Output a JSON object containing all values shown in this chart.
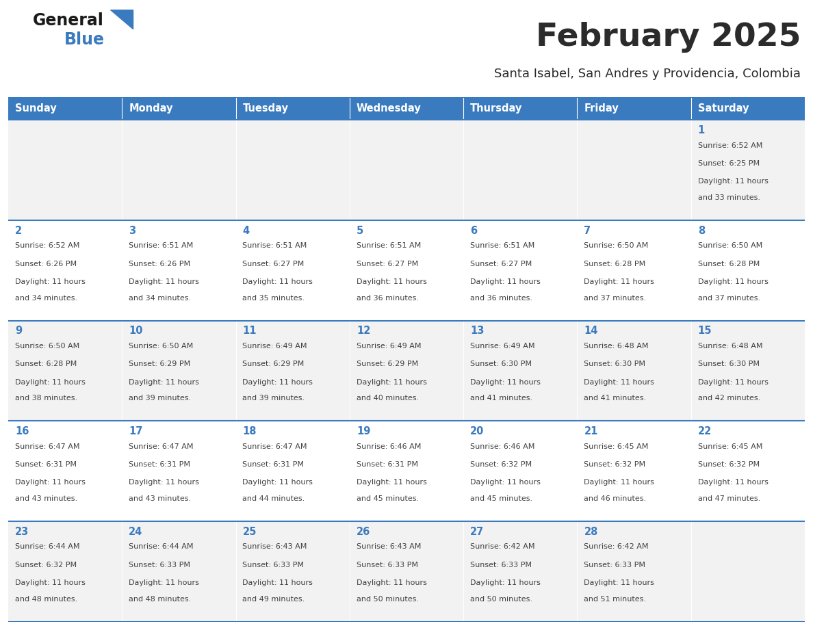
{
  "title": "February 2025",
  "subtitle": "Santa Isabel, San Andres y Providencia, Colombia",
  "days_of_week": [
    "Sunday",
    "Monday",
    "Tuesday",
    "Wednesday",
    "Thursday",
    "Friday",
    "Saturday"
  ],
  "header_bg": "#3a7abf",
  "header_text": "#ffffff",
  "row_bg_odd": "#f2f2f2",
  "row_bg_even": "#ffffff",
  "separator_color": "#3a7abf",
  "day_number_color": "#3a7abf",
  "text_color": "#404040",
  "title_color": "#2b2b2b",
  "subtitle_color": "#2b2b2b",
  "logo_general_color": "#1a1a1a",
  "logo_blue_color": "#3a7abf",
  "calendar_data": [
    {
      "day": 1,
      "col": 6,
      "row": 0,
      "sunrise": "6:52 AM",
      "sunset": "6:25 PM",
      "daylight": "11 hours and 33 minutes"
    },
    {
      "day": 2,
      "col": 0,
      "row": 1,
      "sunrise": "6:52 AM",
      "sunset": "6:26 PM",
      "daylight": "11 hours and 34 minutes"
    },
    {
      "day": 3,
      "col": 1,
      "row": 1,
      "sunrise": "6:51 AM",
      "sunset": "6:26 PM",
      "daylight": "11 hours and 34 minutes"
    },
    {
      "day": 4,
      "col": 2,
      "row": 1,
      "sunrise": "6:51 AM",
      "sunset": "6:27 PM",
      "daylight": "11 hours and 35 minutes"
    },
    {
      "day": 5,
      "col": 3,
      "row": 1,
      "sunrise": "6:51 AM",
      "sunset": "6:27 PM",
      "daylight": "11 hours and 36 minutes"
    },
    {
      "day": 6,
      "col": 4,
      "row": 1,
      "sunrise": "6:51 AM",
      "sunset": "6:27 PM",
      "daylight": "11 hours and 36 minutes"
    },
    {
      "day": 7,
      "col": 5,
      "row": 1,
      "sunrise": "6:50 AM",
      "sunset": "6:28 PM",
      "daylight": "11 hours and 37 minutes"
    },
    {
      "day": 8,
      "col": 6,
      "row": 1,
      "sunrise": "6:50 AM",
      "sunset": "6:28 PM",
      "daylight": "11 hours and 37 minutes"
    },
    {
      "day": 9,
      "col": 0,
      "row": 2,
      "sunrise": "6:50 AM",
      "sunset": "6:28 PM",
      "daylight": "11 hours and 38 minutes"
    },
    {
      "day": 10,
      "col": 1,
      "row": 2,
      "sunrise": "6:50 AM",
      "sunset": "6:29 PM",
      "daylight": "11 hours and 39 minutes"
    },
    {
      "day": 11,
      "col": 2,
      "row": 2,
      "sunrise": "6:49 AM",
      "sunset": "6:29 PM",
      "daylight": "11 hours and 39 minutes"
    },
    {
      "day": 12,
      "col": 3,
      "row": 2,
      "sunrise": "6:49 AM",
      "sunset": "6:29 PM",
      "daylight": "11 hours and 40 minutes"
    },
    {
      "day": 13,
      "col": 4,
      "row": 2,
      "sunrise": "6:49 AM",
      "sunset": "6:30 PM",
      "daylight": "11 hours and 41 minutes"
    },
    {
      "day": 14,
      "col": 5,
      "row": 2,
      "sunrise": "6:48 AM",
      "sunset": "6:30 PM",
      "daylight": "11 hours and 41 minutes"
    },
    {
      "day": 15,
      "col": 6,
      "row": 2,
      "sunrise": "6:48 AM",
      "sunset": "6:30 PM",
      "daylight": "11 hours and 42 minutes"
    },
    {
      "day": 16,
      "col": 0,
      "row": 3,
      "sunrise": "6:47 AM",
      "sunset": "6:31 PM",
      "daylight": "11 hours and 43 minutes"
    },
    {
      "day": 17,
      "col": 1,
      "row": 3,
      "sunrise": "6:47 AM",
      "sunset": "6:31 PM",
      "daylight": "11 hours and 43 minutes"
    },
    {
      "day": 18,
      "col": 2,
      "row": 3,
      "sunrise": "6:47 AM",
      "sunset": "6:31 PM",
      "daylight": "11 hours and 44 minutes"
    },
    {
      "day": 19,
      "col": 3,
      "row": 3,
      "sunrise": "6:46 AM",
      "sunset": "6:31 PM",
      "daylight": "11 hours and 45 minutes"
    },
    {
      "day": 20,
      "col": 4,
      "row": 3,
      "sunrise": "6:46 AM",
      "sunset": "6:32 PM",
      "daylight": "11 hours and 45 minutes"
    },
    {
      "day": 21,
      "col": 5,
      "row": 3,
      "sunrise": "6:45 AM",
      "sunset": "6:32 PM",
      "daylight": "11 hours and 46 minutes"
    },
    {
      "day": 22,
      "col": 6,
      "row": 3,
      "sunrise": "6:45 AM",
      "sunset": "6:32 PM",
      "daylight": "11 hours and 47 minutes"
    },
    {
      "day": 23,
      "col": 0,
      "row": 4,
      "sunrise": "6:44 AM",
      "sunset": "6:32 PM",
      "daylight": "11 hours and 48 minutes"
    },
    {
      "day": 24,
      "col": 1,
      "row": 4,
      "sunrise": "6:44 AM",
      "sunset": "6:33 PM",
      "daylight": "11 hours and 48 minutes"
    },
    {
      "day": 25,
      "col": 2,
      "row": 4,
      "sunrise": "6:43 AM",
      "sunset": "6:33 PM",
      "daylight": "11 hours and 49 minutes"
    },
    {
      "day": 26,
      "col": 3,
      "row": 4,
      "sunrise": "6:43 AM",
      "sunset": "6:33 PM",
      "daylight": "11 hours and 50 minutes"
    },
    {
      "day": 27,
      "col": 4,
      "row": 4,
      "sunrise": "6:42 AM",
      "sunset": "6:33 PM",
      "daylight": "11 hours and 50 minutes"
    },
    {
      "day": 28,
      "col": 5,
      "row": 4,
      "sunrise": "6:42 AM",
      "sunset": "6:33 PM",
      "daylight": "11 hours and 51 minutes"
    }
  ],
  "num_rows": 5,
  "num_cols": 7
}
